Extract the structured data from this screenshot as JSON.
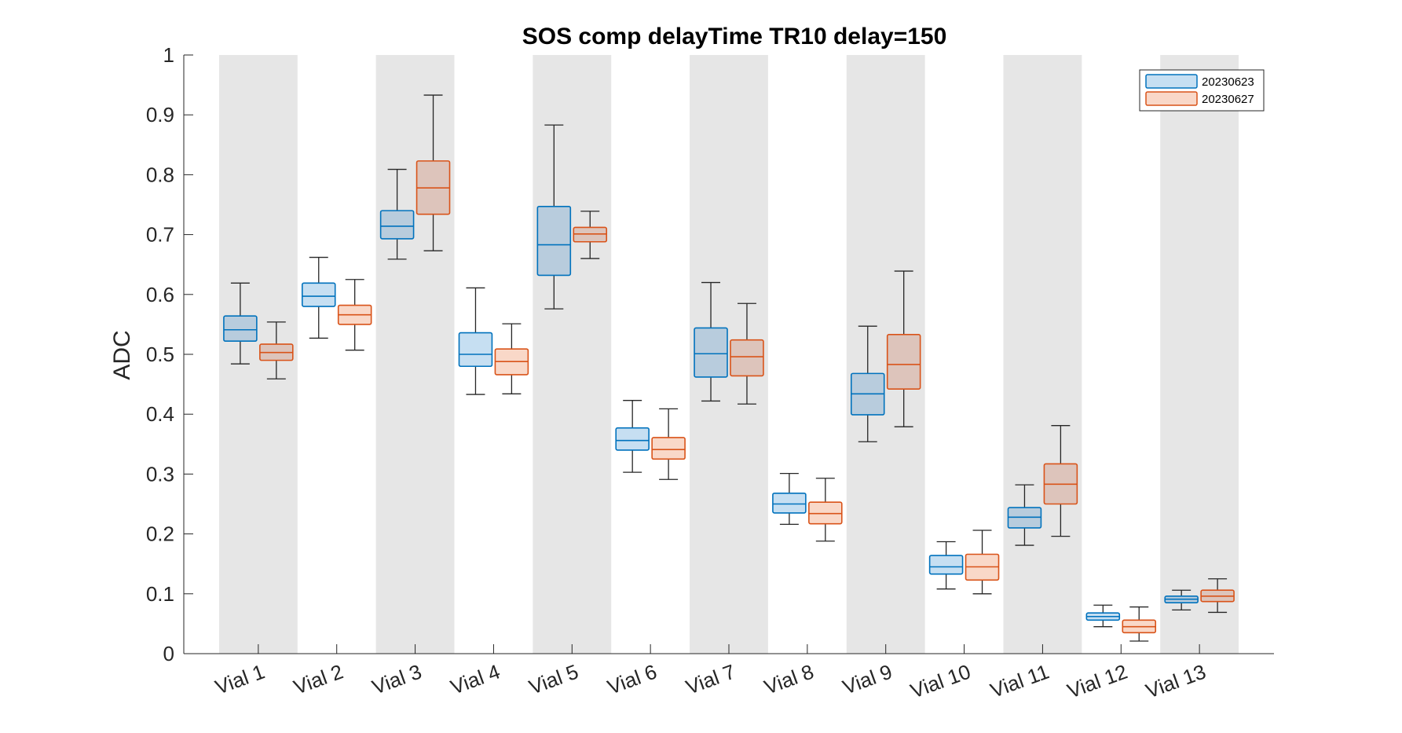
{
  "chart_data": {
    "type": "box",
    "title": "SOS comp delayTime TR10 delay=150",
    "xlabel": "",
    "ylabel": "ADC",
    "ylim": [
      0,
      1
    ],
    "yticks": [
      0,
      0.1,
      0.2,
      0.3,
      0.4,
      0.5,
      0.6,
      0.7,
      0.8,
      0.9,
      1
    ],
    "ytick_labels": [
      "0",
      "0.1",
      "0.2",
      "0.3",
      "0.4",
      "0.5",
      "0.6",
      "0.7",
      "0.8",
      "0.9",
      "1"
    ],
    "categories": [
      "Vial 1",
      "Vial 2",
      "Vial 3",
      "Vial 4",
      "Vial 5",
      "Vial 6",
      "Vial 7",
      "Vial 8",
      "Vial 9",
      "Vial 10",
      "Vial 11",
      "Vial 12",
      "Vial 13"
    ],
    "shaded_categories": [
      true,
      false,
      true,
      false,
      true,
      false,
      true,
      false,
      true,
      false,
      true,
      false,
      true
    ],
    "legend_position": "top-right",
    "series": [
      {
        "name": "20230623",
        "edge_color": "#0072BD",
        "fill_color": "#C6DFF2",
        "boxes": [
          {
            "whisker_low": 0.484,
            "q1": 0.522,
            "median": 0.541,
            "q3": 0.564,
            "whisker_high": 0.619
          },
          {
            "whisker_low": 0.527,
            "q1": 0.58,
            "median": 0.597,
            "q3": 0.619,
            "whisker_high": 0.662
          },
          {
            "whisker_low": 0.659,
            "q1": 0.693,
            "median": 0.714,
            "q3": 0.74,
            "whisker_high": 0.809
          },
          {
            "whisker_low": 0.433,
            "q1": 0.48,
            "median": 0.5,
            "q3": 0.536,
            "whisker_high": 0.611
          },
          {
            "whisker_low": 0.576,
            "q1": 0.632,
            "median": 0.683,
            "q3": 0.747,
            "whisker_high": 0.883
          },
          {
            "whisker_low": 0.303,
            "q1": 0.34,
            "median": 0.356,
            "q3": 0.377,
            "whisker_high": 0.423
          },
          {
            "whisker_low": 0.422,
            "q1": 0.462,
            "median": 0.501,
            "q3": 0.544,
            "whisker_high": 0.62
          },
          {
            "whisker_low": 0.216,
            "q1": 0.235,
            "median": 0.25,
            "q3": 0.268,
            "whisker_high": 0.301
          },
          {
            "whisker_low": 0.354,
            "q1": 0.399,
            "median": 0.434,
            "q3": 0.468,
            "whisker_high": 0.547
          },
          {
            "whisker_low": 0.108,
            "q1": 0.133,
            "median": 0.145,
            "q3": 0.164,
            "whisker_high": 0.187
          },
          {
            "whisker_low": 0.181,
            "q1": 0.21,
            "median": 0.228,
            "q3": 0.244,
            "whisker_high": 0.282
          },
          {
            "whisker_low": 0.045,
            "q1": 0.056,
            "median": 0.062,
            "q3": 0.068,
            "whisker_high": 0.081
          },
          {
            "whisker_low": 0.073,
            "q1": 0.085,
            "median": 0.091,
            "q3": 0.096,
            "whisker_high": 0.106
          }
        ]
      },
      {
        "name": "20230627",
        "edge_color": "#D95319",
        "fill_color": "#F9D8C8",
        "boxes": [
          {
            "whisker_low": 0.459,
            "q1": 0.49,
            "median": 0.503,
            "q3": 0.517,
            "whisker_high": 0.554
          },
          {
            "whisker_low": 0.507,
            "q1": 0.55,
            "median": 0.566,
            "q3": 0.582,
            "whisker_high": 0.625
          },
          {
            "whisker_low": 0.673,
            "q1": 0.734,
            "median": 0.778,
            "q3": 0.823,
            "whisker_high": 0.933
          },
          {
            "whisker_low": 0.434,
            "q1": 0.466,
            "median": 0.488,
            "q3": 0.509,
            "whisker_high": 0.551
          },
          {
            "whisker_low": 0.66,
            "q1": 0.688,
            "median": 0.701,
            "q3": 0.712,
            "whisker_high": 0.739
          },
          {
            "whisker_low": 0.291,
            "q1": 0.325,
            "median": 0.341,
            "q3": 0.361,
            "whisker_high": 0.409
          },
          {
            "whisker_low": 0.417,
            "q1": 0.464,
            "median": 0.496,
            "q3": 0.524,
            "whisker_high": 0.585
          },
          {
            "whisker_low": 0.188,
            "q1": 0.217,
            "median": 0.234,
            "q3": 0.253,
            "whisker_high": 0.293
          },
          {
            "whisker_low": 0.379,
            "q1": 0.442,
            "median": 0.483,
            "q3": 0.533,
            "whisker_high": 0.639
          },
          {
            "whisker_low": 0.1,
            "q1": 0.123,
            "median": 0.145,
            "q3": 0.166,
            "whisker_high": 0.206
          },
          {
            "whisker_low": 0.196,
            "q1": 0.25,
            "median": 0.283,
            "q3": 0.317,
            "whisker_high": 0.381
          },
          {
            "whisker_low": 0.021,
            "q1": 0.035,
            "median": 0.045,
            "q3": 0.056,
            "whisker_high": 0.078
          },
          {
            "whisker_low": 0.069,
            "q1": 0.087,
            "median": 0.096,
            "q3": 0.106,
            "whisker_high": 0.125
          }
        ]
      }
    ]
  },
  "style": {
    "shade_color": "#E6E6E6",
    "whisker_color": "#262626",
    "shaded_box_fills": [
      "#B8CCDD",
      "#DDC4BB"
    ]
  }
}
